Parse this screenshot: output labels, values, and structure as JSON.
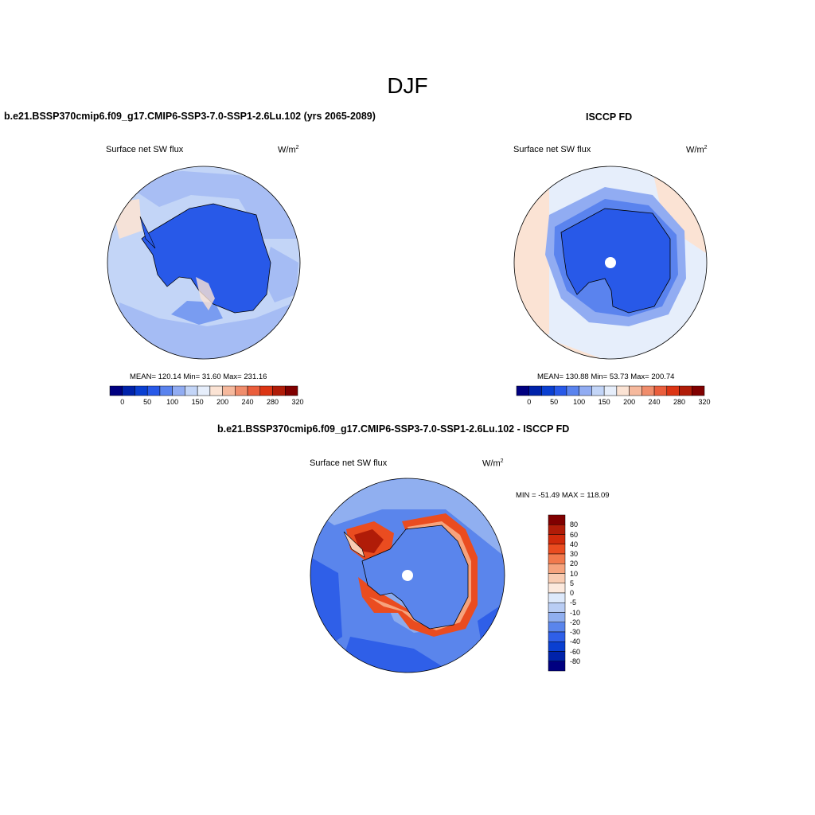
{
  "main_title": "DJF",
  "panels": [
    {
      "title": "b.e21.BSSP370cmip6.f09_g17.CMIP6-SSP3-7.0-SSP1-2.6Lu.102 (yrs 2065-2089)",
      "variable": "Surface net SW flux",
      "units": "W/m",
      "units_sup": "2",
      "stats": "MEAN= 120.14  Min=  31.60  Max= 231.16",
      "colorbar_ticks": [
        "0",
        "50",
        "100",
        "150",
        "200",
        "240",
        "280",
        "320"
      ]
    },
    {
      "title": "ISCCP FD",
      "variable": "Surface net SW flux",
      "units": "W/m",
      "units_sup": "2",
      "stats": "MEAN= 130.88  Min=  53.73  Max= 200.74",
      "colorbar_ticks": [
        "0",
        "50",
        "100",
        "150",
        "200",
        "240",
        "280",
        "320"
      ]
    },
    {
      "title": "b.e21.BSSP370cmip6.f09_g17.CMIP6-SSP3-7.0-SSP1-2.6Lu.102 - ISCCP FD",
      "variable": "Surface net SW flux",
      "units": "W/m",
      "units_sup": "2",
      "stats": "MIN = -51.49 MAX = 118.09",
      "colorbar_ticks": [
        "80",
        "60",
        "40",
        "30",
        "20",
        "10",
        "5",
        "0",
        "-5",
        "-10",
        "-20",
        "-30",
        "-40",
        "-60",
        "-80"
      ]
    }
  ],
  "colors": {
    "abs_scale": [
      "#000080",
      "#0022aa",
      "#0a3fd1",
      "#2859e8",
      "#5a83ee",
      "#91acf2",
      "#c3d5f7",
      "#e6eefb",
      "#fbe3d4",
      "#f6b99d",
      "#f08d6c",
      "#ea5e3c",
      "#dc3514",
      "#b01c08",
      "#800000"
    ],
    "diff_scale": [
      "#800000",
      "#b01c08",
      "#d02a0b",
      "#ea4c20",
      "#f2794c",
      "#f6a37d",
      "#f9ccb2",
      "#fce9dd",
      "#dde9fb",
      "#b9cdf4",
      "#90aff0",
      "#5a85ec",
      "#2f5fe8",
      "#0a3fd1",
      "#0022aa",
      "#000080"
    ]
  }
}
